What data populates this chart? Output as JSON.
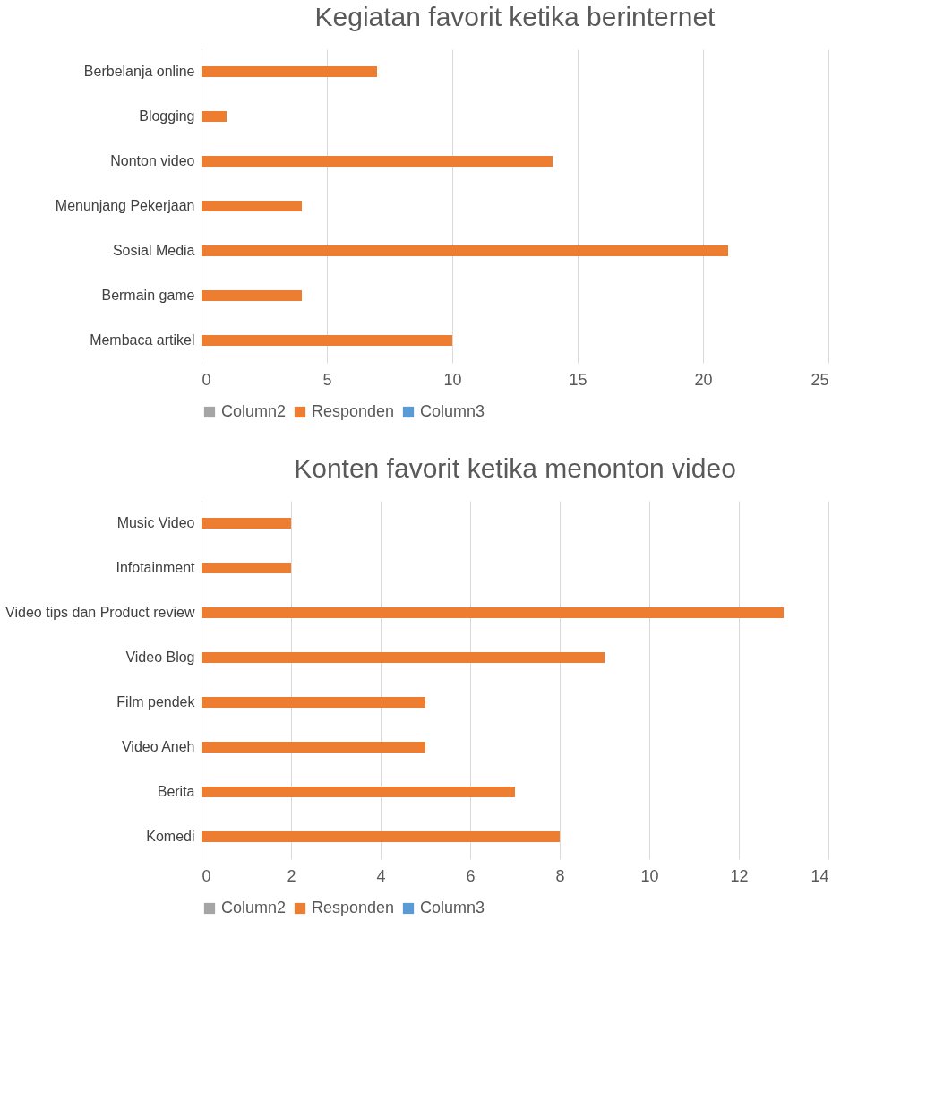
{
  "chart_data": [
    {
      "type": "bar",
      "orientation": "horizontal",
      "title": "Kegiatan favorit ketika berinternet",
      "categories": [
        "Berbelanja online",
        "Blogging",
        "Nonton video",
        "Menunjang Pekerjaan",
        "Sosial Media",
        "Bermain game",
        "Membaca artikel"
      ],
      "series": [
        {
          "name": "Column2",
          "color": "#a5a5a5",
          "values": [
            null,
            null,
            null,
            null,
            null,
            null,
            null
          ]
        },
        {
          "name": "Responden",
          "color": "#ed7d31",
          "values": [
            7,
            1,
            14,
            4,
            21,
            4,
            10
          ]
        },
        {
          "name": "Column3",
          "color": "#5b9bd5",
          "values": [
            null,
            null,
            null,
            null,
            null,
            null,
            null
          ]
        }
      ],
      "xlim": [
        0,
        25
      ],
      "xticks": [
        0,
        5,
        10,
        15,
        20,
        25
      ],
      "grid": "x",
      "legend": "bottom"
    },
    {
      "type": "bar",
      "orientation": "horizontal",
      "title": "Konten favorit ketika menonton video",
      "categories": [
        "Music Video",
        "Infotainment",
        "Video tips dan Product review",
        "Video Blog",
        "Film pendek",
        "Video Aneh",
        "Berita",
        "Komedi"
      ],
      "series": [
        {
          "name": "Column2",
          "color": "#a5a5a5",
          "values": [
            null,
            null,
            null,
            null,
            null,
            null,
            null,
            null
          ]
        },
        {
          "name": "Responden",
          "color": "#ed7d31",
          "values": [
            2,
            2,
            13,
            9,
            5,
            5,
            7,
            8
          ]
        },
        {
          "name": "Column3",
          "color": "#5b9bd5",
          "values": [
            null,
            null,
            null,
            null,
            null,
            null,
            null,
            null
          ]
        }
      ],
      "xlim": [
        0,
        14
      ],
      "xticks": [
        0,
        2,
        4,
        6,
        8,
        10,
        12,
        14
      ],
      "grid": "x",
      "legend": "bottom"
    }
  ]
}
